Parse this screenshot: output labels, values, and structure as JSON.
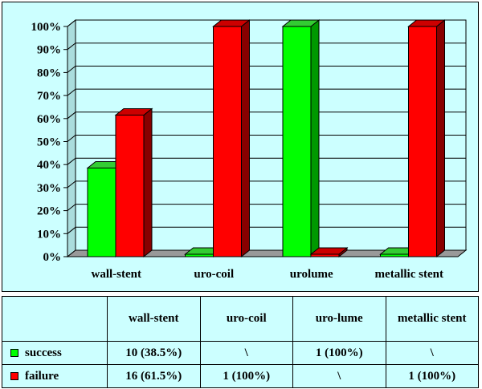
{
  "chart_data": {
    "type": "bar",
    "categories": [
      "wall-stent",
      "uro-coil",
      "urolume",
      "metallic stent"
    ],
    "series": [
      {
        "name": "success",
        "color": "#00ff00",
        "side_color": "#009900",
        "top_color": "#33cc33",
        "values": [
          38.5,
          0,
          100,
          0
        ]
      },
      {
        "name": "failure",
        "color": "#ff0000",
        "side_color": "#880000",
        "top_color": "#cc0000",
        "values": [
          61.5,
          100,
          0,
          100
        ]
      }
    ],
    "y_ticks": [
      "0%",
      "10%",
      "20%",
      "30%",
      "40%",
      "50%",
      "60%",
      "70%",
      "80%",
      "90%",
      "100%"
    ],
    "ylim": [
      0,
      100
    ],
    "grid": true,
    "legend": "table-left"
  },
  "table": {
    "headers": [
      "",
      "wall-stent",
      "uro-coil",
      "uro-lume",
      "metallic stent"
    ],
    "rows": [
      {
        "label": "success",
        "color": "#00ff00",
        "cells": [
          "10 (38.5%)",
          "\\",
          "1 (100%)",
          "\\"
        ]
      },
      {
        "label": "failure",
        "color": "#ff0000",
        "cells": [
          "16 (61.5%)",
          "1 (100%)",
          "\\",
          "1 (100%)"
        ]
      }
    ]
  }
}
